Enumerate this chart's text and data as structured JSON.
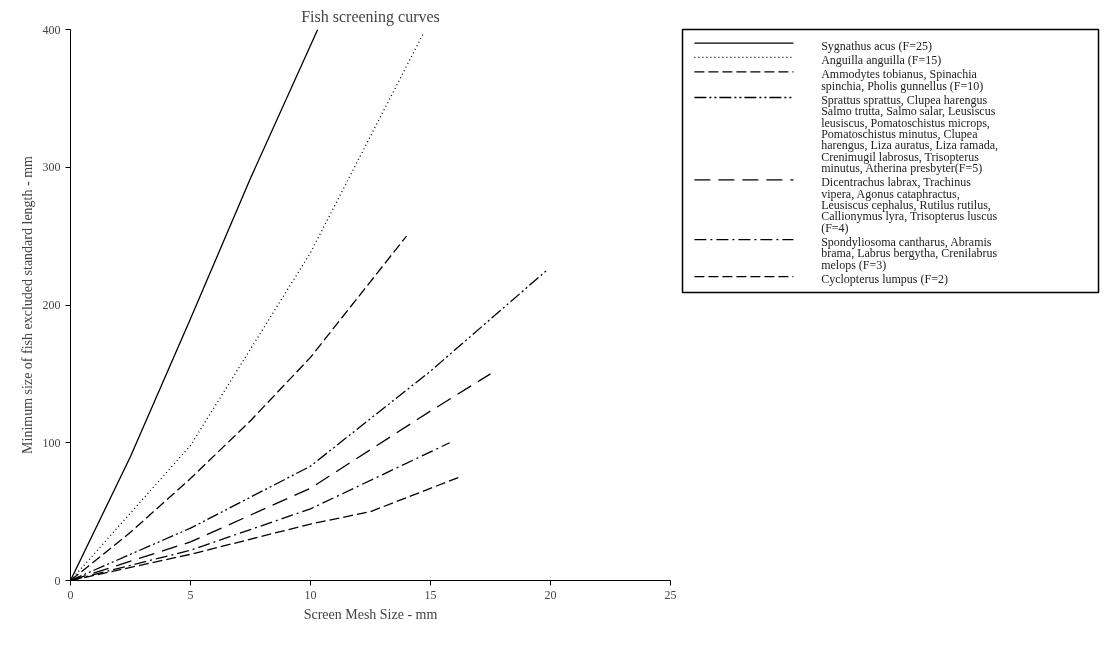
{
  "chart_data": {
    "type": "line",
    "title": "Fish screening curves",
    "xlabel": "Screen Mesh Size - mm",
    "ylabel": "Minimum size of fish excluded standard length - mm",
    "xlim": [
      0,
      25
    ],
    "xticks": [
      0,
      5,
      10,
      15,
      20,
      25
    ],
    "ylim": [
      0,
      400
    ],
    "yticks": [
      0,
      100,
      200,
      300,
      400
    ],
    "grid": false,
    "legend": "right",
    "series": [
      {
        "name": "Sygnathus acus (F=25)",
        "color": "#000000",
        "line_style": "solid",
        "x": [
          0,
          2.5,
          5,
          7.5,
          10.3
        ],
        "values": [
          0,
          90,
          190,
          292,
          400
        ]
      },
      {
        "name": "Anguilla anguilla (F=15)",
        "color": "#000000",
        "line_style": "dotted",
        "x": [
          0,
          5,
          10,
          14.7
        ],
        "values": [
          0,
          98,
          238,
          397
        ]
      },
      {
        "name": "Ammodytes tobianus, Spinachia spinchia, Pholis gunnellus (F=10)",
        "color": "#000000",
        "line_style": "dashed",
        "x": [
          0,
          2.5,
          5,
          7.5,
          10,
          14
        ],
        "values": [
          0,
          35,
          74,
          116,
          162,
          250
        ]
      },
      {
        "name": "Sprattus sprattus, Clupea harengus Salmo trutta, Salmo salar, Leusiscus leusiscus, Pomatoschistus microps, Pomatoschistus minutus, Clupea harengus, Liza auratus, Liza ramada, Crenimugil labrosus, Trisopterus minutus, Atherina presbyter(F=5)",
        "color": "#000000",
        "line_style": "dashdotdot",
        "x": [
          0,
          5,
          10,
          15,
          19.9
        ],
        "values": [
          0,
          38,
          83,
          152,
          226
        ]
      },
      {
        "name": "Dicentrachus labrax, Trachinus vipera, Agonus cataphractus, Leusiscus cephalus, Rutilus rutilus, Callionymus lyra, Trisopterus luscus (F=4)",
        "color": "#000000",
        "line_style": "longdash",
        "x": [
          0,
          5,
          10,
          15,
          17.5
        ],
        "values": [
          0,
          28,
          67,
          123,
          150
        ]
      },
      {
        "name": "Spondyliosoma cantharus, Abramis brama, Labrus bergytha, Crenilabrus melops (F=3)",
        "color": "#000000",
        "line_style": "dashdot",
        "x": [
          0,
          5,
          10,
          15.8
        ],
        "values": [
          0,
          22,
          52,
          100
        ]
      },
      {
        "name": "Cyclopterus lumpus (F=2)",
        "color": "#000000",
        "line_style": "dashed",
        "x": [
          0,
          5,
          10,
          12.5,
          16.2
        ],
        "values": [
          0,
          19,
          41,
          50,
          75
        ]
      }
    ]
  }
}
